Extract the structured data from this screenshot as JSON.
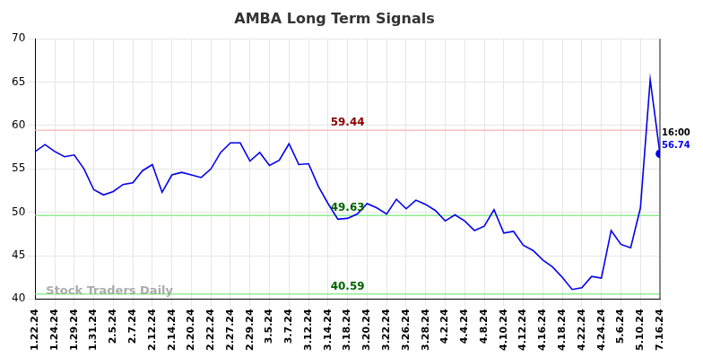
{
  "chart_data": {
    "type": "line",
    "title": "AMBA Long Term Signals",
    "categories": [
      "1.22.24",
      null,
      "1.24.24",
      null,
      "1.29.24",
      null,
      "1.31.24",
      null,
      "2.5.24",
      null,
      "2.7.24",
      null,
      "2.12.24",
      null,
      "2.14.24",
      null,
      "2.20.24",
      null,
      "2.22.24",
      null,
      "2.27.24",
      null,
      "2.29.24",
      null,
      "3.5.24",
      null,
      "3.7.24",
      null,
      "3.12.24",
      null,
      "3.14.24",
      null,
      "3.18.24",
      null,
      "3.20.24",
      null,
      "3.22.24",
      null,
      "3.26.24",
      null,
      "3.28.24",
      null,
      "4.2.24",
      null,
      "4.4.24",
      null,
      "4.8.24",
      null,
      "4.10.24",
      null,
      "4.12.24",
      null,
      "4.16.24",
      null,
      "4.18.24",
      null,
      "4.22.24",
      null,
      "4.24.24",
      null,
      "5.6.24",
      null,
      "5.10.24",
      null,
      "7.16.24"
    ],
    "values": [
      57.0,
      57.8,
      57.0,
      56.4,
      56.6,
      55.0,
      52.6,
      52.0,
      52.4,
      53.2,
      53.4,
      54.8,
      55.5,
      52.3,
      54.3,
      54.6,
      54.3,
      54.0,
      55.0,
      56.9,
      58.0,
      58.0,
      55.9,
      56.9,
      55.4,
      56.0,
      57.9,
      55.5,
      55.6,
      53.0,
      51.0,
      49.2,
      49.3,
      49.8,
      51.0,
      50.5,
      49.8,
      51.5,
      50.4,
      51.4,
      50.9,
      50.2,
      49.0,
      49.7,
      49.0,
      47.9,
      48.4,
      50.3,
      47.6,
      47.8,
      46.2,
      45.6,
      44.5,
      43.7,
      42.5,
      41.1,
      41.3,
      42.6,
      42.4,
      47.9,
      46.3,
      45.9,
      50.5,
      65.3,
      56.74
    ],
    "color": "#0000ee",
    "ylim": [
      40,
      70
    ],
    "yticks": [
      40,
      45,
      50,
      55,
      60,
      65,
      70
    ],
    "grid": true,
    "reference_lines": [
      {
        "value": 59.44,
        "color": "#ffc0c0",
        "label_color": "#8b0000"
      },
      {
        "value": 49.63,
        "color": "#90ee90",
        "label_color": "#006400"
      },
      {
        "value": 40.59,
        "color": "#90ee90",
        "label_color": "#006400"
      }
    ],
    "last_point": {
      "time_label": "16:00",
      "value_label": "56.74"
    },
    "watermark": "Stock Traders Daily"
  }
}
